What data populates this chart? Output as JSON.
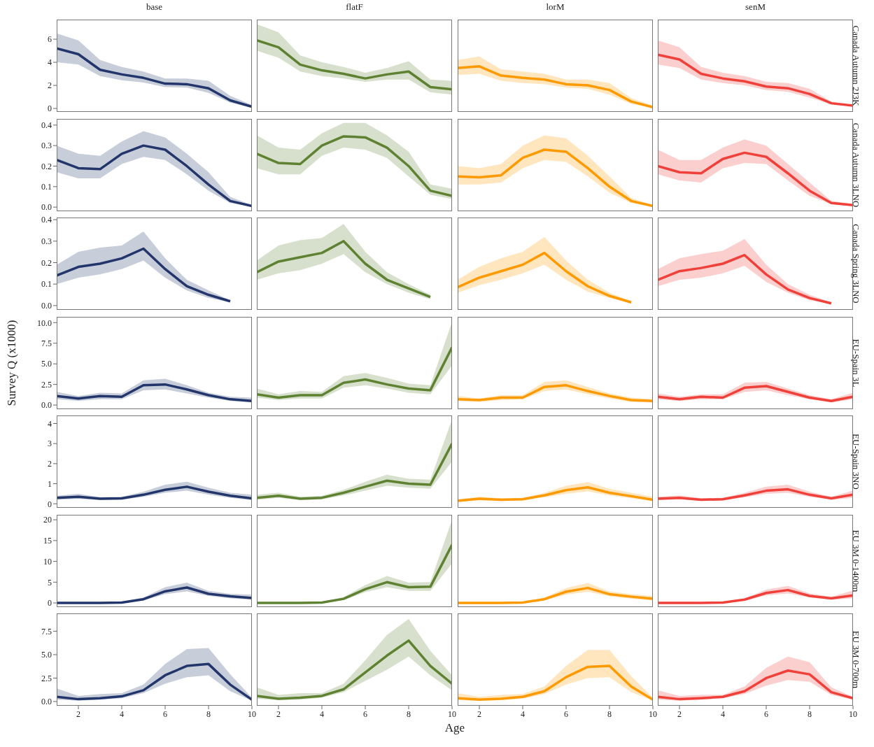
{
  "chart_data": [
    {
      "type": "line",
      "title": "base",
      "x": [
        1,
        2,
        3,
        4,
        5,
        6,
        7,
        8,
        9,
        10
      ],
      "xlim": [
        1,
        10
      ],
      "ylim": [
        -0.3,
        7.7
      ],
      "yticks": [
        0,
        2,
        4,
        6
      ],
      "tick_labels": "y",
      "series": [
        {
          "color": "#22366b",
          "values": [
            5.2,
            4.7,
            3.35,
            2.95,
            2.65,
            2.15,
            2.1,
            1.75,
            0.7,
            0.15
          ],
          "lower": [
            4.0,
            3.8,
            2.8,
            2.45,
            2.25,
            1.85,
            1.8,
            1.35,
            0.5,
            0.05
          ],
          "upper": [
            6.5,
            5.9,
            4.2,
            3.6,
            3.2,
            2.6,
            2.6,
            2.4,
            1.1,
            0.3
          ]
        }
      ]
    },
    {
      "type": "line",
      "title": "flatF",
      "x": [
        1,
        2,
        3,
        4,
        5,
        6,
        7,
        8,
        9,
        10
      ],
      "xlim": [
        1,
        10
      ],
      "ylim": [
        -0.3,
        7.7
      ],
      "tick_labels": false,
      "series": [
        {
          "color": "#5e8232",
          "values": [
            5.9,
            5.3,
            3.8,
            3.3,
            3.0,
            2.6,
            2.95,
            3.2,
            1.85,
            1.65
          ],
          "lower": [
            5.0,
            4.4,
            3.2,
            2.8,
            2.6,
            2.3,
            2.5,
            2.5,
            1.4,
            1.2
          ],
          "upper": [
            7.3,
            6.6,
            4.6,
            4.0,
            3.6,
            3.1,
            3.5,
            4.1,
            2.5,
            2.4
          ]
        }
      ]
    },
    {
      "type": "line",
      "title": "lorM",
      "x": [
        1,
        2,
        3,
        4,
        5,
        6,
        7,
        8,
        9,
        10
      ],
      "xlim": [
        1,
        10
      ],
      "ylim": [
        -0.3,
        7.7
      ],
      "tick_labels": false,
      "series": [
        {
          "color": "#fe9a00",
          "values": [
            3.5,
            3.65,
            2.85,
            2.65,
            2.5,
            2.1,
            2.0,
            1.6,
            0.6,
            0.1
          ],
          "lower": [
            2.9,
            3.0,
            2.4,
            2.2,
            2.1,
            1.8,
            1.7,
            1.2,
            0.4,
            0.03
          ],
          "upper": [
            4.2,
            4.5,
            3.4,
            3.2,
            3.0,
            2.5,
            2.5,
            2.2,
            0.9,
            0.25
          ]
        }
      ]
    },
    {
      "type": "line",
      "title": "senM",
      "annotations": [
        "Canada Autumn 2J3K"
      ],
      "x": [
        1,
        2,
        3,
        4,
        5,
        6,
        7,
        8,
        9,
        10
      ],
      "xlim": [
        1,
        10
      ],
      "ylim": [
        -0.3,
        7.7
      ],
      "tick_labels": false,
      "series": [
        {
          "color": "#f0403a",
          "values": [
            4.65,
            4.25,
            3.0,
            2.6,
            2.35,
            1.9,
            1.75,
            1.25,
            0.45,
            0.25
          ],
          "lower": [
            3.8,
            3.5,
            2.5,
            2.2,
            2.0,
            1.6,
            1.45,
            0.95,
            0.35,
            0.2
          ],
          "upper": [
            5.9,
            5.3,
            3.6,
            3.1,
            2.8,
            2.3,
            2.2,
            1.7,
            0.6,
            0.3
          ]
        }
      ]
    },
    {
      "type": "line",
      "x": [
        1,
        2,
        3,
        4,
        5,
        6,
        7,
        8,
        9,
        10
      ],
      "xlim": [
        1,
        10
      ],
      "ylim": [
        -0.02,
        0.43
      ],
      "yticks": [
        {
          "value": 0,
          "label": "0.0"
        },
        0.1,
        0.2,
        0.3,
        0.4
      ],
      "tick_labels": "y",
      "series": [
        {
          "color": "#22366b",
          "values": [
            0.23,
            0.19,
            0.185,
            0.26,
            0.3,
            0.28,
            0.2,
            0.11,
            0.03,
            0.005
          ],
          "lower": [
            0.17,
            0.14,
            0.14,
            0.21,
            0.245,
            0.23,
            0.16,
            0.08,
            0.02,
            0.003
          ],
          "upper": [
            0.3,
            0.26,
            0.25,
            0.32,
            0.37,
            0.34,
            0.26,
            0.17,
            0.05,
            0.01
          ]
        }
      ]
    },
    {
      "type": "line",
      "x": [
        1,
        2,
        3,
        4,
        5,
        6,
        7,
        8,
        9,
        10
      ],
      "xlim": [
        1,
        10
      ],
      "ylim": [
        -0.02,
        0.43
      ],
      "tick_labels": false,
      "series": [
        {
          "color": "#5e8232",
          "values": [
            0.26,
            0.215,
            0.21,
            0.3,
            0.345,
            0.34,
            0.29,
            0.2,
            0.08,
            0.055
          ],
          "lower": [
            0.19,
            0.16,
            0.16,
            0.25,
            0.29,
            0.28,
            0.24,
            0.15,
            0.06,
            0.04
          ],
          "upper": [
            0.35,
            0.29,
            0.28,
            0.36,
            0.41,
            0.41,
            0.35,
            0.27,
            0.11,
            0.09
          ]
        }
      ]
    },
    {
      "type": "line",
      "x": [
        1,
        2,
        3,
        4,
        5,
        6,
        7,
        8,
        9,
        10
      ],
      "xlim": [
        1,
        10
      ],
      "ylim": [
        -0.02,
        0.43
      ],
      "tick_labels": false,
      "series": [
        {
          "color": "#fe9a00",
          "values": [
            0.15,
            0.145,
            0.155,
            0.24,
            0.28,
            0.27,
            0.19,
            0.1,
            0.03,
            0.005
          ],
          "lower": [
            0.11,
            0.11,
            0.12,
            0.19,
            0.23,
            0.22,
            0.15,
            0.07,
            0.02,
            0.002
          ],
          "upper": [
            0.2,
            0.19,
            0.21,
            0.3,
            0.35,
            0.335,
            0.25,
            0.15,
            0.045,
            0.01
          ]
        }
      ]
    },
    {
      "type": "line",
      "annotations": [
        "Canada Autumn 3LNO"
      ],
      "x": [
        1,
        2,
        3,
        4,
        5,
        6,
        7,
        8,
        9,
        10
      ],
      "xlim": [
        1,
        10
      ],
      "ylim": [
        -0.02,
        0.43
      ],
      "tick_labels": false,
      "series": [
        {
          "color": "#f0403a",
          "values": [
            0.2,
            0.17,
            0.165,
            0.235,
            0.265,
            0.245,
            0.165,
            0.08,
            0.02,
            0.01
          ],
          "lower": [
            0.16,
            0.13,
            0.12,
            0.19,
            0.215,
            0.21,
            0.13,
            0.055,
            0.015,
            0.005
          ],
          "upper": [
            0.28,
            0.23,
            0.23,
            0.29,
            0.33,
            0.3,
            0.21,
            0.12,
            0.03,
            0.015
          ]
        }
      ]
    },
    {
      "type": "line",
      "x": [
        1,
        2,
        3,
        4,
        5,
        6,
        7,
        8,
        9
      ],
      "xlim": [
        1,
        10
      ],
      "ylim": [
        -0.02,
        0.41
      ],
      "yticks": [
        {
          "value": 0,
          "label": "0.0"
        },
        0.1,
        0.2,
        0.3,
        0.4
      ],
      "tick_labels": "y",
      "series": [
        {
          "color": "#22366b",
          "values": [
            0.14,
            0.18,
            0.195,
            0.22,
            0.265,
            0.17,
            0.09,
            0.05,
            0.02
          ],
          "lower": [
            0.1,
            0.13,
            0.145,
            0.17,
            0.21,
            0.13,
            0.07,
            0.035,
            0.015
          ],
          "upper": [
            0.19,
            0.25,
            0.27,
            0.28,
            0.345,
            0.22,
            0.12,
            0.07,
            0.025
          ]
        }
      ]
    },
    {
      "type": "line",
      "x": [
        1,
        2,
        3,
        4,
        5,
        6,
        7,
        8,
        9
      ],
      "xlim": [
        1,
        10
      ],
      "ylim": [
        -0.02,
        0.41
      ],
      "tick_labels": false,
      "series": [
        {
          "color": "#5e8232",
          "values": [
            0.155,
            0.205,
            0.225,
            0.245,
            0.3,
            0.195,
            0.12,
            0.08,
            0.04
          ],
          "lower": [
            0.12,
            0.15,
            0.165,
            0.195,
            0.24,
            0.155,
            0.1,
            0.06,
            0.03
          ],
          "upper": [
            0.21,
            0.28,
            0.305,
            0.315,
            0.38,
            0.25,
            0.155,
            0.1,
            0.05
          ]
        }
      ]
    },
    {
      "type": "line",
      "x": [
        1,
        2,
        3,
        4,
        5,
        6,
        7,
        8,
        9
      ],
      "xlim": [
        1,
        10
      ],
      "ylim": [
        -0.02,
        0.41
      ],
      "tick_labels": false,
      "series": [
        {
          "color": "#fe9a00",
          "values": [
            0.085,
            0.13,
            0.16,
            0.19,
            0.245,
            0.16,
            0.09,
            0.045,
            0.015
          ],
          "lower": [
            0.06,
            0.095,
            0.12,
            0.15,
            0.19,
            0.12,
            0.065,
            0.035,
            0.01
          ],
          "upper": [
            0.12,
            0.18,
            0.22,
            0.25,
            0.32,
            0.21,
            0.12,
            0.06,
            0.02
          ]
        }
      ]
    },
    {
      "type": "line",
      "annotations": [
        "Canada Spring 3LNO"
      ],
      "x": [
        1,
        2,
        3,
        4,
        5,
        6,
        7,
        8,
        9
      ],
      "xlim": [
        1,
        10
      ],
      "ylim": [
        -0.02,
        0.41
      ],
      "tick_labels": false,
      "series": [
        {
          "color": "#f0403a",
          "values": [
            0.12,
            0.16,
            0.175,
            0.195,
            0.235,
            0.145,
            0.075,
            0.035,
            0.01
          ],
          "lower": [
            0.09,
            0.12,
            0.13,
            0.15,
            0.185,
            0.11,
            0.06,
            0.025,
            0.008
          ],
          "upper": [
            0.17,
            0.22,
            0.24,
            0.255,
            0.31,
            0.19,
            0.1,
            0.05,
            0.015
          ]
        }
      ]
    },
    {
      "type": "line",
      "ylabel": "Survey Q (x1000)",
      "x": [
        1,
        2,
        3,
        4,
        5,
        6,
        7,
        8,
        9,
        10
      ],
      "xlim": [
        1,
        10
      ],
      "ylim": [
        -0.5,
        10.7
      ],
      "yticks": [
        {
          "value": 0,
          "label": "0.0"
        },
        2.5,
        {
          "value": 5,
          "label": "5.0"
        },
        7.5,
        {
          "value": 10,
          "label": "10.0"
        }
      ],
      "tick_labels": "y",
      "series": [
        {
          "color": "#22366b",
          "values": [
            1.1,
            0.8,
            1.1,
            1.0,
            2.4,
            2.5,
            1.9,
            1.2,
            0.7,
            0.5
          ],
          "lower": [
            0.7,
            0.5,
            0.7,
            0.7,
            1.8,
            1.9,
            1.4,
            0.9,
            0.5,
            0.3
          ],
          "upper": [
            1.6,
            1.1,
            1.5,
            1.4,
            3.0,
            3.2,
            2.4,
            1.5,
            1.0,
            0.9
          ]
        }
      ]
    },
    {
      "type": "line",
      "x": [
        1,
        2,
        3,
        4,
        5,
        6,
        7,
        8,
        9,
        10
      ],
      "xlim": [
        1,
        10
      ],
      "ylim": [
        -0.5,
        10.7
      ],
      "tick_labels": false,
      "series": [
        {
          "color": "#5e8232",
          "values": [
            1.3,
            0.9,
            1.2,
            1.2,
            2.7,
            3.1,
            2.5,
            2.0,
            1.8,
            7.0
          ],
          "lower": [
            0.9,
            0.6,
            0.8,
            0.8,
            2.1,
            2.4,
            2.0,
            1.5,
            1.3,
            4.8
          ],
          "upper": [
            2.0,
            1.3,
            1.7,
            1.6,
            3.5,
            3.9,
            3.3,
            2.6,
            2.4,
            10.1
          ]
        }
      ]
    },
    {
      "type": "line",
      "x": [
        1,
        2,
        3,
        4,
        5,
        6,
        7,
        8,
        9,
        10
      ],
      "xlim": [
        1,
        10
      ],
      "ylim": [
        -0.5,
        10.7
      ],
      "tick_labels": false,
      "series": [
        {
          "color": "#fe9a00",
          "values": [
            0.7,
            0.6,
            0.9,
            0.9,
            2.2,
            2.4,
            1.7,
            1.1,
            0.6,
            0.5
          ],
          "lower": [
            0.5,
            0.4,
            0.6,
            0.7,
            1.7,
            1.9,
            1.3,
            0.8,
            0.4,
            0.3
          ],
          "upper": [
            1.1,
            0.8,
            1.2,
            1.2,
            2.8,
            3.0,
            2.2,
            1.4,
            0.9,
            0.7
          ]
        }
      ]
    },
    {
      "type": "line",
      "annotations": [
        "EU-Spain 3L"
      ],
      "x": [
        1,
        2,
        3,
        4,
        5,
        6,
        7,
        8,
        9,
        10
      ],
      "xlim": [
        1,
        10
      ],
      "ylim": [
        -0.5,
        10.7
      ],
      "tick_labels": false,
      "series": [
        {
          "color": "#f0403a",
          "values": [
            1.0,
            0.7,
            1.0,
            0.9,
            2.1,
            2.3,
            1.6,
            0.9,
            0.5,
            1.0
          ],
          "lower": [
            0.7,
            0.5,
            0.7,
            0.7,
            1.6,
            1.8,
            1.2,
            0.7,
            0.3,
            0.7
          ],
          "upper": [
            1.4,
            1.0,
            1.3,
            1.3,
            2.7,
            2.8,
            2.0,
            1.2,
            0.7,
            1.5
          ]
        }
      ]
    },
    {
      "type": "line",
      "x": [
        1,
        2,
        3,
        4,
        5,
        6,
        7,
        8,
        9,
        10
      ],
      "xlim": [
        1,
        10
      ],
      "ylim": [
        -0.2,
        4.4
      ],
      "yticks": [
        0,
        1,
        2,
        3,
        4
      ],
      "tick_labels": "y",
      "series": [
        {
          "color": "#22366b",
          "values": [
            0.3,
            0.35,
            0.25,
            0.27,
            0.45,
            0.7,
            0.85,
            0.6,
            0.4,
            0.27
          ],
          "lower": [
            0.2,
            0.25,
            0.18,
            0.2,
            0.35,
            0.55,
            0.65,
            0.45,
            0.3,
            0.18
          ],
          "upper": [
            0.4,
            0.5,
            0.33,
            0.35,
            0.6,
            0.95,
            1.1,
            0.8,
            0.55,
            0.45
          ]
        }
      ]
    },
    {
      "type": "line",
      "x": [
        1,
        2,
        3,
        4,
        5,
        6,
        7,
        8,
        9,
        10
      ],
      "xlim": [
        1,
        10
      ],
      "ylim": [
        -0.2,
        4.4
      ],
      "tick_labels": false,
      "series": [
        {
          "color": "#5e8232",
          "values": [
            0.3,
            0.4,
            0.25,
            0.3,
            0.55,
            0.85,
            1.15,
            1.0,
            0.95,
            3.0
          ],
          "lower": [
            0.2,
            0.3,
            0.18,
            0.22,
            0.42,
            0.65,
            0.9,
            0.8,
            0.75,
            2.1
          ],
          "upper": [
            0.45,
            0.55,
            0.35,
            0.4,
            0.7,
            1.1,
            1.45,
            1.25,
            1.2,
            4.2
          ]
        }
      ]
    },
    {
      "type": "line",
      "x": [
        1,
        2,
        3,
        4,
        5,
        6,
        7,
        8,
        9,
        10
      ],
      "xlim": [
        1,
        10
      ],
      "ylim": [
        -0.2,
        4.4
      ],
      "tick_labels": false,
      "series": [
        {
          "color": "#fe9a00",
          "values": [
            0.15,
            0.25,
            0.2,
            0.23,
            0.42,
            0.68,
            0.82,
            0.55,
            0.38,
            0.2
          ],
          "lower": [
            0.1,
            0.17,
            0.14,
            0.17,
            0.32,
            0.5,
            0.62,
            0.42,
            0.27,
            0.13
          ],
          "upper": [
            0.22,
            0.35,
            0.28,
            0.3,
            0.55,
            0.9,
            1.08,
            0.75,
            0.55,
            0.35
          ]
        }
      ]
    },
    {
      "type": "line",
      "annotations": [
        "EU-Spain 3NO"
      ],
      "x": [
        1,
        2,
        3,
        4,
        5,
        6,
        7,
        8,
        9,
        10
      ],
      "xlim": [
        1,
        10
      ],
      "ylim": [
        -0.2,
        4.4
      ],
      "tick_labels": false,
      "series": [
        {
          "color": "#f0403a",
          "values": [
            0.25,
            0.3,
            0.2,
            0.23,
            0.42,
            0.65,
            0.72,
            0.45,
            0.27,
            0.45
          ],
          "lower": [
            0.18,
            0.22,
            0.15,
            0.17,
            0.32,
            0.5,
            0.55,
            0.35,
            0.2,
            0.3
          ],
          "upper": [
            0.35,
            0.42,
            0.28,
            0.3,
            0.55,
            0.85,
            0.95,
            0.6,
            0.35,
            0.65
          ]
        }
      ]
    },
    {
      "type": "line",
      "x": [
        1,
        2,
        3,
        4,
        5,
        6,
        7,
        8,
        9,
        10
      ],
      "xlim": [
        1,
        10
      ],
      "ylim": [
        -1,
        21.2
      ],
      "yticks": [
        0,
        5,
        10,
        15,
        20
      ],
      "tick_labels": "y",
      "series": [
        {
          "color": "#22366b",
          "values": [
            0,
            0,
            0,
            0.1,
            0.9,
            2.8,
            3.7,
            2.2,
            1.6,
            1.2
          ],
          "lower": [
            0,
            0,
            0,
            0,
            0.6,
            2.1,
            2.8,
            1.7,
            1.1,
            0.8
          ],
          "upper": [
            0.1,
            0.1,
            0.1,
            0.3,
            1.3,
            3.8,
            4.9,
            2.9,
            2.2,
            2.0
          ]
        }
      ]
    },
    {
      "type": "line",
      "x": [
        1,
        2,
        3,
        4,
        5,
        6,
        7,
        8,
        9,
        10
      ],
      "xlim": [
        1,
        10
      ],
      "ylim": [
        -1,
        21.2
      ],
      "tick_labels": false,
      "series": [
        {
          "color": "#5e8232",
          "values": [
            0,
            0,
            0,
            0.1,
            1.0,
            3.3,
            5.0,
            3.8,
            3.9,
            14.0
          ],
          "lower": [
            0,
            0,
            0,
            0,
            0.7,
            2.6,
            3.8,
            2.9,
            2.9,
            9.5
          ],
          "upper": [
            0.1,
            0.1,
            0.1,
            0.3,
            1.4,
            4.3,
            6.5,
            4.9,
            5.0,
            20.0
          ]
        }
      ]
    },
    {
      "type": "line",
      "x": [
        1,
        2,
        3,
        4,
        5,
        6,
        7,
        8,
        9,
        10
      ],
      "xlim": [
        1,
        10
      ],
      "ylim": [
        -1,
        21.2
      ],
      "tick_labels": false,
      "series": [
        {
          "color": "#fe9a00",
          "values": [
            0,
            0,
            0,
            0.1,
            0.9,
            2.7,
            3.6,
            2.1,
            1.5,
            1.0
          ],
          "lower": [
            0,
            0,
            0,
            0,
            0.6,
            2.0,
            2.7,
            1.6,
            1.0,
            0.6
          ],
          "upper": [
            0.1,
            0.1,
            0.1,
            0.3,
            1.3,
            3.6,
            4.8,
            2.8,
            2.1,
            1.7
          ]
        }
      ]
    },
    {
      "type": "line",
      "annotations": [
        "EU 3M 0-1400m"
      ],
      "x": [
        1,
        2,
        3,
        4,
        5,
        6,
        7,
        8,
        9,
        10
      ],
      "xlim": [
        1,
        10
      ],
      "ylim": [
        -1,
        21.2
      ],
      "tick_labels": false,
      "series": [
        {
          "color": "#f0403a",
          "values": [
            0,
            0,
            0,
            0.1,
            0.8,
            2.4,
            3.1,
            1.7,
            1.1,
            1.8
          ],
          "lower": [
            0,
            0,
            0,
            0,
            0.5,
            1.8,
            2.3,
            1.3,
            0.8,
            1.1
          ],
          "upper": [
            0.1,
            0.1,
            0.1,
            0.3,
            1.1,
            3.2,
            4.1,
            2.3,
            1.5,
            3.0
          ]
        }
      ]
    },
    {
      "type": "line",
      "x": [
        1,
        2,
        3,
        4,
        5,
        6,
        7,
        8,
        9,
        10
      ],
      "xlim": [
        1,
        10
      ],
      "xticks": [
        2,
        4,
        6,
        8,
        10
      ],
      "ylim": [
        -0.45,
        9.4
      ],
      "yticks": [
        {
          "value": 0,
          "label": "0.0"
        },
        2.5,
        {
          "value": 5,
          "label": "5.0"
        },
        7.5
      ],
      "series": [
        {
          "color": "#22366b",
          "values": [
            0.5,
            0.25,
            0.35,
            0.55,
            1.2,
            2.8,
            3.8,
            4.0,
            1.8,
            0.2
          ],
          "lower": [
            0.2,
            0.1,
            0.2,
            0.35,
            0.9,
            1.9,
            2.6,
            2.8,
            1.1,
            0.1
          ],
          "upper": [
            1.4,
            0.6,
            0.8,
            0.9,
            1.8,
            4.0,
            5.6,
            5.7,
            2.9,
            0.4
          ]
        }
      ]
    },
    {
      "type": "line",
      "xlabel": "Age",
      "x": [
        1,
        2,
        3,
        4,
        5,
        6,
        7,
        8,
        9,
        10
      ],
      "xlim": [
        1,
        10
      ],
      "xticks": [
        2,
        4,
        6,
        8,
        10
      ],
      "ylim": [
        -0.45,
        9.4
      ],
      "tick_labels": "x",
      "series": [
        {
          "color": "#5e8232",
          "values": [
            0.6,
            0.3,
            0.4,
            0.6,
            1.3,
            3.1,
            4.9,
            6.5,
            3.8,
            1.9
          ],
          "lower": [
            0.3,
            0.15,
            0.2,
            0.4,
            1.0,
            2.2,
            3.4,
            4.8,
            2.8,
            1.2
          ],
          "upper": [
            1.5,
            0.7,
            0.9,
            0.9,
            1.9,
            4.4,
            7.1,
            8.8,
            5.4,
            2.8
          ]
        }
      ]
    },
    {
      "type": "line",
      "x": [
        1,
        2,
        3,
        4,
        5,
        6,
        7,
        8,
        9,
        10
      ],
      "xlim": [
        1,
        10
      ],
      "xticks": [
        2,
        4,
        6,
        8,
        10
      ],
      "ylim": [
        -0.45,
        9.4
      ],
      "tick_labels": "x",
      "series": [
        {
          "color": "#fe9a00",
          "values": [
            0.35,
            0.2,
            0.3,
            0.5,
            1.1,
            2.6,
            3.7,
            3.8,
            1.6,
            0.2
          ],
          "lower": [
            0.15,
            0.1,
            0.15,
            0.3,
            0.8,
            1.8,
            2.5,
            2.6,
            1.0,
            0.1
          ],
          "upper": [
            0.9,
            0.5,
            0.7,
            0.8,
            1.6,
            3.8,
            5.5,
            5.5,
            2.7,
            0.4
          ]
        }
      ]
    },
    {
      "type": "line",
      "annotations": [
        "EU 3M 0-700m"
      ],
      "x": [
        1,
        2,
        3,
        4,
        5,
        6,
        7,
        8,
        9,
        10
      ],
      "xlim": [
        1,
        10
      ],
      "xticks": [
        2,
        4,
        6,
        8,
        10
      ],
      "ylim": [
        -0.45,
        9.4
      ],
      "tick_labels": "x",
      "series": [
        {
          "color": "#f0403a",
          "values": [
            0.5,
            0.25,
            0.35,
            0.5,
            1.1,
            2.5,
            3.3,
            2.9,
            1.0,
            0.35
          ],
          "lower": [
            0.2,
            0.1,
            0.2,
            0.35,
            0.8,
            1.7,
            2.3,
            2.1,
            0.7,
            0.2
          ],
          "upper": [
            1.2,
            0.6,
            0.7,
            0.7,
            1.6,
            3.6,
            4.8,
            4.2,
            1.5,
            0.5
          ]
        }
      ]
    }
  ]
}
